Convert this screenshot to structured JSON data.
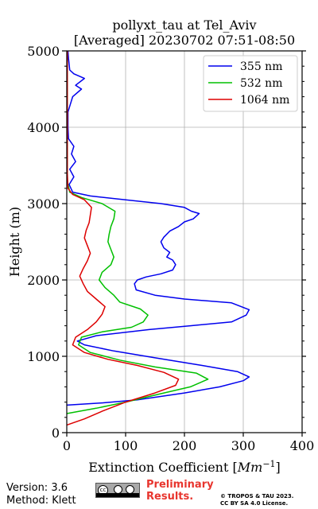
{
  "chart_data": {
    "type": "line",
    "title_line1": "pollyxt_tau at Tel_Aviv",
    "title_line2": "[Averaged] 20230702 07:51-08:50",
    "xlabel_prefix": "Extinction Coefficient ",
    "xlabel_unit_base": "Mm",
    "xlabel_unit_exp": "−1",
    "ylabel": "Height (m)",
    "xlim": [
      0,
      400
    ],
    "ylim": [
      0,
      5000
    ],
    "x_ticks": [
      0,
      100,
      200,
      300,
      400
    ],
    "y_ticks": [
      0,
      1000,
      2000,
      3000,
      4000,
      5000
    ],
    "grid": true,
    "legend_position": "top-right",
    "series": [
      {
        "name": "355 nm",
        "color": "#0000ee",
        "points": [
          [
            0,
            360
          ],
          [
            60,
            390
          ],
          [
            120,
            430
          ],
          [
            200,
            520
          ],
          [
            260,
            600
          ],
          [
            300,
            680
          ],
          [
            310,
            730
          ],
          [
            290,
            800
          ],
          [
            230,
            880
          ],
          [
            150,
            980
          ],
          [
            80,
            1070
          ],
          [
            30,
            1150
          ],
          [
            18,
            1200
          ],
          [
            50,
            1270
          ],
          [
            140,
            1350
          ],
          [
            210,
            1400
          ],
          [
            280,
            1450
          ],
          [
            305,
            1540
          ],
          [
            310,
            1610
          ],
          [
            280,
            1700
          ],
          [
            200,
            1750
          ],
          [
            150,
            1800
          ],
          [
            118,
            1870
          ],
          [
            115,
            1950
          ],
          [
            120,
            2000
          ],
          [
            135,
            2040
          ],
          [
            160,
            2080
          ],
          [
            180,
            2130
          ],
          [
            185,
            2200
          ],
          [
            180,
            2260
          ],
          [
            170,
            2300
          ],
          [
            175,
            2360
          ],
          [
            165,
            2420
          ],
          [
            160,
            2500
          ],
          [
            165,
            2560
          ],
          [
            175,
            2640
          ],
          [
            190,
            2700
          ],
          [
            200,
            2760
          ],
          [
            215,
            2800
          ],
          [
            225,
            2870
          ],
          [
            212,
            2900
          ],
          [
            200,
            2950
          ],
          [
            160,
            3000
          ],
          [
            100,
            3050
          ],
          [
            40,
            3100
          ],
          [
            10,
            3150
          ],
          [
            4,
            3250
          ],
          [
            12,
            3350
          ],
          [
            5,
            3450
          ],
          [
            15,
            3550
          ],
          [
            8,
            3650
          ],
          [
            12,
            3750
          ],
          [
            3,
            3850
          ],
          [
            2,
            4000
          ],
          [
            2,
            4200
          ],
          [
            10,
            4400
          ],
          [
            25,
            4500
          ],
          [
            15,
            4550
          ],
          [
            30,
            4640
          ],
          [
            12,
            4700
          ],
          [
            5,
            4750
          ],
          [
            3,
            4900
          ],
          [
            2,
            5000
          ]
        ]
      },
      {
        "name": "532 nm",
        "color": "#00c000",
        "points": [
          [
            0,
            250
          ],
          [
            50,
            320
          ],
          [
            100,
            400
          ],
          [
            160,
            510
          ],
          [
            210,
            600
          ],
          [
            240,
            700
          ],
          [
            220,
            780
          ],
          [
            150,
            860
          ],
          [
            90,
            950
          ],
          [
            40,
            1050
          ],
          [
            20,
            1150
          ],
          [
            25,
            1250
          ],
          [
            60,
            1320
          ],
          [
            110,
            1380
          ],
          [
            130,
            1450
          ],
          [
            138,
            1540
          ],
          [
            125,
            1620
          ],
          [
            90,
            1710
          ],
          [
            80,
            1800
          ],
          [
            65,
            1900
          ],
          [
            55,
            2000
          ],
          [
            60,
            2100
          ],
          [
            75,
            2200
          ],
          [
            80,
            2300
          ],
          [
            75,
            2400
          ],
          [
            70,
            2500
          ],
          [
            72,
            2600
          ],
          [
            75,
            2700
          ],
          [
            80,
            2800
          ],
          [
            82,
            2900
          ],
          [
            60,
            3000
          ],
          [
            25,
            3080
          ],
          [
            5,
            3150
          ],
          [
            1,
            3300
          ],
          [
            1,
            4000
          ],
          [
            1,
            4700
          ],
          [
            1,
            5000
          ]
        ]
      },
      {
        "name": "1064 nm",
        "color": "#dd0000",
        "points": [
          [
            0,
            100
          ],
          [
            30,
            180
          ],
          [
            60,
            280
          ],
          [
            100,
            400
          ],
          [
            150,
            520
          ],
          [
            185,
            620
          ],
          [
            190,
            700
          ],
          [
            165,
            790
          ],
          [
            120,
            880
          ],
          [
            70,
            960
          ],
          [
            30,
            1050
          ],
          [
            10,
            1150
          ],
          [
            15,
            1250
          ],
          [
            35,
            1350
          ],
          [
            50,
            1450
          ],
          [
            60,
            1550
          ],
          [
            65,
            1650
          ],
          [
            50,
            1750
          ],
          [
            35,
            1850
          ],
          [
            28,
            1950
          ],
          [
            22,
            2050
          ],
          [
            28,
            2150
          ],
          [
            35,
            2250
          ],
          [
            40,
            2350
          ],
          [
            35,
            2450
          ],
          [
            30,
            2550
          ],
          [
            33,
            2650
          ],
          [
            38,
            2750
          ],
          [
            40,
            2850
          ],
          [
            42,
            2950
          ],
          [
            30,
            3050
          ],
          [
            10,
            3120
          ],
          [
            2,
            3200
          ],
          [
            1,
            3400
          ],
          [
            1,
            4000
          ],
          [
            1,
            5000
          ]
        ]
      }
    ]
  },
  "footer": {
    "version": "Version: 3.6",
    "method": "Method: Klett",
    "cc_badge": "cc",
    "preliminary_line1": "Preliminary",
    "preliminary_line2": "Results.",
    "copyright_line1": "© TROPOS & TAU 2023.",
    "copyright_line2": "CC BY SA 4.0 License."
  }
}
